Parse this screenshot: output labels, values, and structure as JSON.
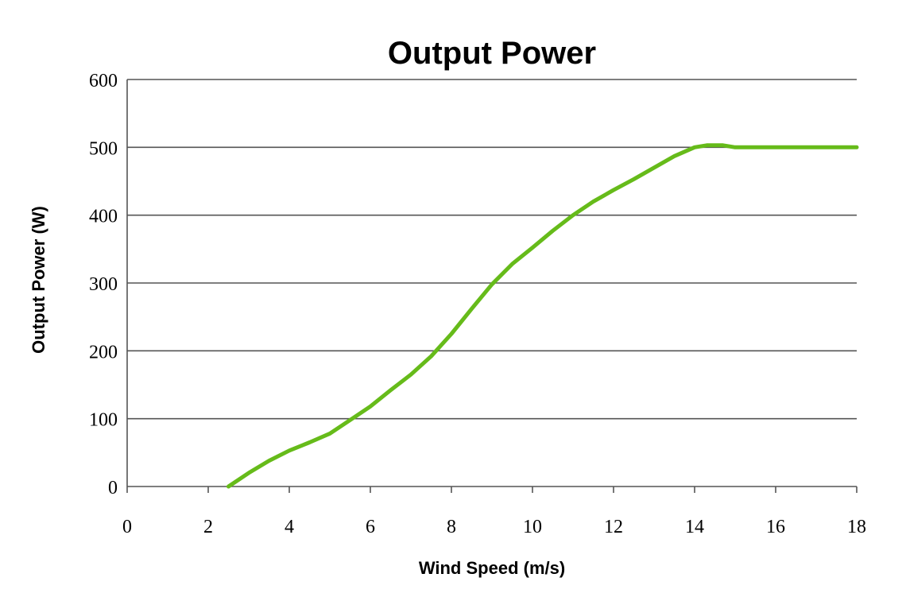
{
  "chart_data": {
    "type": "line",
    "title": "Output Power",
    "xlabel": "Wind Speed (m/s)",
    "ylabel": "Output Power (W)",
    "xlim": [
      0,
      18
    ],
    "ylim": [
      0,
      600
    ],
    "xticks": [
      0,
      2,
      4,
      6,
      8,
      10,
      12,
      14,
      16,
      18
    ],
    "yticks": [
      0,
      100,
      200,
      300,
      400,
      500,
      600
    ],
    "grid": "horizontal",
    "legend": "none",
    "series": [
      {
        "color": "#66bb1a",
        "x": [
          2.5,
          3,
          3.5,
          4,
          4.5,
          5,
          5.5,
          6,
          6.5,
          7,
          7.5,
          8,
          8.5,
          9,
          9.5,
          10,
          10.5,
          11,
          11.5,
          12,
          12.5,
          13,
          13.5,
          14,
          14.3,
          14.7,
          15,
          16,
          17,
          18
        ],
        "y": [
          0,
          20,
          38,
          53,
          65,
          78,
          98,
          118,
          142,
          165,
          192,
          225,
          262,
          298,
          328,
          352,
          377,
          400,
          420,
          437,
          453,
          470,
          487,
          500,
          503,
          503,
          500,
          500,
          500,
          500
        ]
      }
    ]
  }
}
